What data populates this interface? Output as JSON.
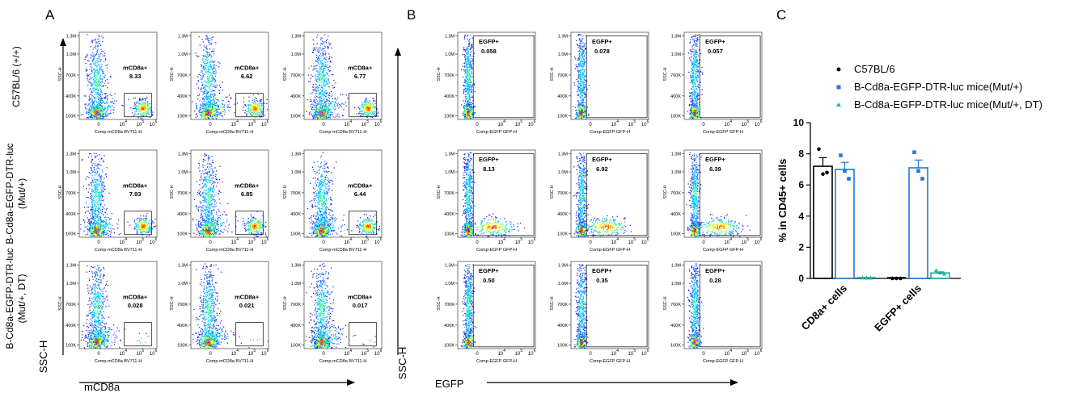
{
  "panel_labels": [
    "A",
    "B",
    "C"
  ],
  "row_labels": [
    [
      "C57BL/6 (+/+)"
    ],
    [
      "B-Cd8a-EGFP-DTR-luc",
      "(Mut/+)"
    ],
    [
      "B-Cd8a-EGFP-DTR-luc",
      "(Mut/+, DT)"
    ]
  ],
  "panel_a": {
    "axis_y_title": "SSC-H",
    "axis_x_title": "mCD8a",
    "plot_xlabel": "Comp-mCD8a BV711-H",
    "plot_ylabel": "SSC-H",
    "gate_label": "mCD8a+",
    "values": [
      [
        "8.33",
        "6.62",
        "6.77"
      ],
      [
        "7.93",
        "6.85",
        "6.44"
      ],
      [
        "0.028",
        "0.021",
        "0.017"
      ]
    ]
  },
  "panel_b": {
    "axis_y_title": "SSC-H",
    "axis_x_title": "EGFP",
    "plot_xlabel": "Comp-EGFP GFP-H",
    "plot_ylabel": "SSC-H",
    "gate_label": "EGFP+",
    "values": [
      [
        "0.058",
        "0.078",
        "0.057"
      ],
      [
        "8.13",
        "6.92",
        "6.39"
      ],
      [
        "0.50",
        "0.35",
        "0.28"
      ]
    ]
  },
  "flow_ticks": {
    "y": [
      "1.3M",
      "1.0M",
      "700K",
      "400K",
      "100K"
    ],
    "x": [
      "0",
      "10",
      "4",
      "10",
      "5",
      "10",
      "6"
    ]
  },
  "colors": {
    "c57": "#000000",
    "mut": "#1f7ae0",
    "mut_dt": "#19b2a4",
    "density": [
      "#1010d0",
      "#2060ff",
      "#00c8ff",
      "#40ff90",
      "#ffff00",
      "#ff8000",
      "#ff0000"
    ]
  },
  "chart_data": {
    "type": "bar",
    "title": "",
    "xlabel": "",
    "ylabel": "% in CD45+ cells",
    "ylim": [
      0,
      10
    ],
    "yticks": [
      "0",
      "2",
      "4",
      "6",
      "8",
      "10"
    ],
    "categories": [
      "CD8a+ cells",
      "EGFP+ cells"
    ],
    "legend_position": "top",
    "series": [
      {
        "name": "C57BL/6",
        "values": [
          7.2,
          0.0
        ],
        "errors": [
          0.55,
          0.0
        ],
        "points": [
          [
            8.3,
            6.7,
            6.8
          ],
          [
            0.0,
            0.0,
            0.0
          ]
        ]
      },
      {
        "name": "B-Cd8a-EGFP-DTR-luc mice(Mut/+)",
        "values": [
          7.0,
          7.1
        ],
        "errors": [
          0.45,
          0.5
        ],
        "points": [
          [
            7.9,
            6.9,
            6.4
          ],
          [
            8.1,
            6.9,
            6.4
          ]
        ]
      },
      {
        "name": "B-Cd8a-EGFP-DTR-luc mice(Mut/+, DT)",
        "values": [
          0.0,
          0.35
        ],
        "errors": [
          0.0,
          0.07
        ],
        "points": [
          [
            0.03,
            0.02,
            0.02
          ],
          [
            0.5,
            0.35,
            0.28
          ]
        ]
      }
    ]
  }
}
